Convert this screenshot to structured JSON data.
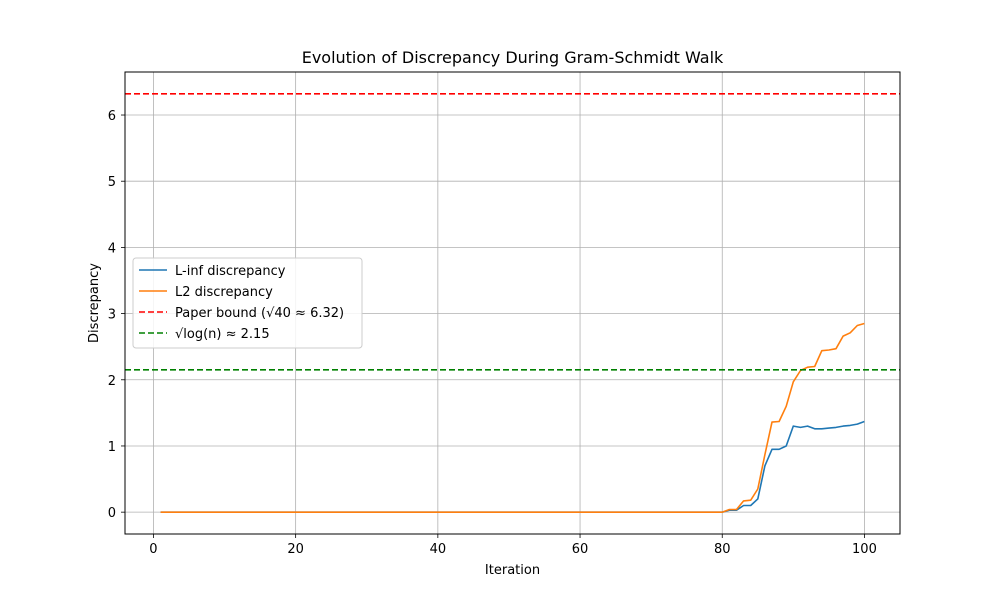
{
  "chart_data": {
    "type": "line",
    "title": "Evolution of Discrepancy During Gram-Schmidt Walk",
    "xlabel": "Iteration",
    "ylabel": "Discrepancy",
    "xlim": [
      -4,
      105
    ],
    "ylim": [
      -0.33,
      6.65
    ],
    "xticks": [
      0,
      20,
      40,
      60,
      80,
      100
    ],
    "yticks": [
      0,
      1,
      2,
      3,
      4,
      5,
      6
    ],
    "grid": true,
    "legend_position": "center-left",
    "series": [
      {
        "name": "L-inf discrepancy",
        "color": "#1f77b4",
        "dashed": false,
        "x": [
          1,
          80,
          81,
          82,
          83,
          84,
          85,
          86,
          87,
          88,
          89,
          90,
          91,
          92,
          93,
          94,
          95,
          96,
          97,
          98,
          99,
          100
        ],
        "y": [
          0,
          0,
          0.03,
          0.03,
          0.1,
          0.1,
          0.2,
          0.7,
          0.95,
          0.95,
          1.0,
          1.3,
          1.28,
          1.3,
          1.26,
          1.26,
          1.27,
          1.28,
          1.3,
          1.31,
          1.33,
          1.37
        ]
      },
      {
        "name": "L2 discrepancy",
        "color": "#ff7f0e",
        "dashed": false,
        "x": [
          1,
          80,
          81,
          82,
          83,
          84,
          85,
          86,
          87,
          88,
          89,
          90,
          91,
          92,
          93,
          94,
          95,
          96,
          97,
          98,
          99,
          100
        ],
        "y": [
          0,
          0,
          0.04,
          0.04,
          0.17,
          0.18,
          0.35,
          0.87,
          1.36,
          1.37,
          1.6,
          1.97,
          2.14,
          2.19,
          2.2,
          2.44,
          2.45,
          2.47,
          2.66,
          2.71,
          2.82,
          2.85
        ]
      },
      {
        "name": "Paper bound (√40 ≈ 6.32)",
        "color": "#ff0000",
        "dashed": true,
        "hline": 6.32
      },
      {
        "name": "√log(n) ≈ 2.15",
        "color": "#008000",
        "dashed": true,
        "hline": 2.15
      }
    ]
  }
}
